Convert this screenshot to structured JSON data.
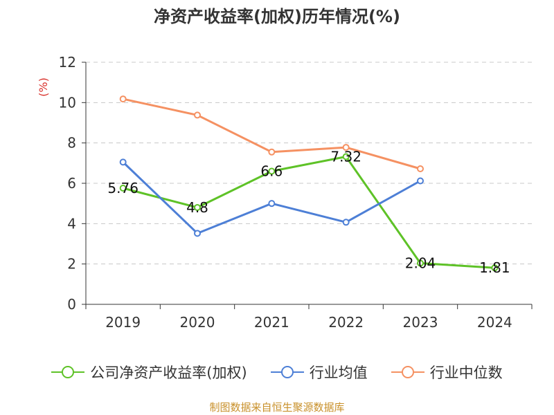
{
  "chart_data": {
    "type": "line",
    "title": "净资产收益率(加权)历年情况(%)",
    "ylabel": "(%)",
    "xlabel": "",
    "categories": [
      "2019",
      "2020",
      "2021",
      "2022",
      "2023",
      "2024"
    ],
    "ylim": [
      0,
      12
    ],
    "yticks": [
      0,
      2,
      4,
      6,
      8,
      10,
      12
    ],
    "grid": true,
    "legend_position": "bottom",
    "series": [
      {
        "name": "公司净资产收益率(加权)",
        "color": "#5ec227",
        "values": [
          5.76,
          4.8,
          6.6,
          7.32,
          2.04,
          1.81
        ],
        "labels": [
          "5.76",
          "4.8",
          "6.6",
          "7.32",
          "2.04",
          "1.81"
        ]
      },
      {
        "name": "行业均值",
        "color": "#4d7fd6",
        "values": [
          7.05,
          3.52,
          5.0,
          4.07,
          6.12,
          null
        ]
      },
      {
        "name": "行业中位数",
        "color": "#f59162",
        "values": [
          10.18,
          9.38,
          7.55,
          7.78,
          6.72,
          null
        ]
      }
    ],
    "source": "制图数据来自恒生聚源数据库"
  },
  "colors": {
    "axis": "#333333",
    "grid": "#c8c8c8",
    "ylabel": "#d9312b",
    "source": "#c8902a"
  }
}
